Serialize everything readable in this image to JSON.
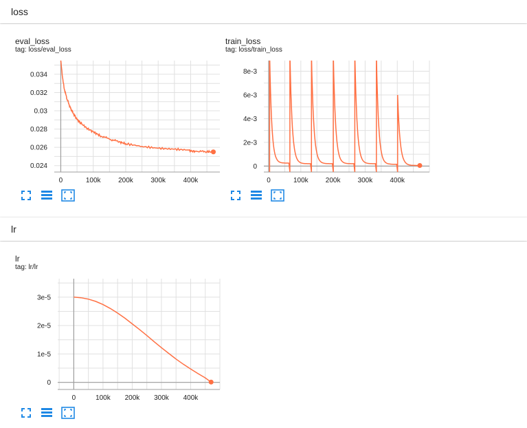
{
  "sections": [
    {
      "title": "loss"
    },
    {
      "title": "lr"
    }
  ],
  "colors": {
    "series": "#ff7043",
    "grid": "#e0e0e0",
    "axis": "#9e9e9e",
    "icon": "#1e88e5"
  },
  "icons": [
    "fit-domain-icon",
    "data-table-icon",
    "log-scale-toggle-icon"
  ],
  "charts": [
    {
      "title": "eval_loss",
      "tag": "tag: loss/eval_loss",
      "chart_data": {
        "type": "line",
        "title": "eval_loss",
        "xlabel": "",
        "ylabel": "",
        "xlim": [
          -20000,
          490000
        ],
        "ylim": [
          0.0233,
          0.0355
        ],
        "xticks": [
          {
            "v": 0,
            "l": "0"
          },
          {
            "v": 100000,
            "l": "100k"
          },
          {
            "v": 200000,
            "l": "200k"
          },
          {
            "v": 300000,
            "l": "300k"
          },
          {
            "v": 400000,
            "l": "400k"
          }
        ],
        "yticks": [
          {
            "v": 0.024,
            "l": "0.024"
          },
          {
            "v": 0.026,
            "l": "0.026"
          },
          {
            "v": 0.028,
            "l": "0.028"
          },
          {
            "v": 0.03,
            "l": "0.03"
          },
          {
            "v": 0.032,
            "l": "0.032"
          },
          {
            "v": 0.034,
            "l": "0.034"
          }
        ],
        "grid": true,
        "series": [
          {
            "x": [
              0,
              5000,
              10000,
              20000,
              30000,
              40000,
              50000,
              60000,
              80000,
              100000,
              120000,
              150000,
              180000,
              200000,
              250000,
              300000,
              350000,
              395000,
              400000,
              420000,
              450000,
              470000
            ],
            "y": [
              0.0355,
              0.0338,
              0.0325,
              0.0312,
              0.0303,
              0.0296,
              0.0291,
              0.0287,
              0.0281,
              0.0277,
              0.0273,
              0.0269,
              0.0266,
              0.0264,
              0.0261,
              0.0259,
              0.0258,
              0.0257,
              0.0256,
              0.02555,
              0.02553,
              0.0255
            ]
          }
        ]
      }
    },
    {
      "title": "train_loss",
      "tag": "tag: loss/train_loss",
      "chart_data": {
        "type": "line",
        "title": "train_loss",
        "xlabel": "",
        "ylabel": "",
        "xlim": [
          -15000,
          500000
        ],
        "ylim": [
          -0.0005,
          0.0089
        ],
        "xticks": [
          {
            "v": 0,
            "l": "0"
          },
          {
            "v": 100000,
            "l": "100k"
          },
          {
            "v": 200000,
            "l": "200k"
          },
          {
            "v": 300000,
            "l": "300k"
          },
          {
            "v": 400000,
            "l": "400k"
          }
        ],
        "yticks": [
          {
            "v": 0,
            "l": "0"
          },
          {
            "v": 0.002,
            "l": "2e-3"
          },
          {
            "v": 0.004,
            "l": "4e-3"
          },
          {
            "v": 0.006,
            "l": "6e-3"
          },
          {
            "v": 0.008,
            "l": "8e-3"
          }
        ],
        "grid": true,
        "spikes": [
          {
            "start": 3000,
            "end": 63000,
            "peak": 0.0095,
            "floor": 0.00025
          },
          {
            "start": 66000,
            "end": 130000,
            "peak": 0.0095,
            "floor": 0.0002
          },
          {
            "start": 133000,
            "end": 198000,
            "peak": 0.0095,
            "floor": 0.0002
          },
          {
            "start": 201000,
            "end": 265000,
            "peak": 0.0095,
            "floor": 0.0002
          },
          {
            "start": 268000,
            "end": 332000,
            "peak": 0.0095,
            "floor": 0.0002
          },
          {
            "start": 335000,
            "end": 398000,
            "peak": 0.0095,
            "floor": 0.00015
          },
          {
            "start": 401000,
            "end": 470000,
            "peak": 0.006,
            "floor": 5e-05
          }
        ],
        "last_point": {
          "x": 470000,
          "y": 5e-05
        }
      }
    },
    {
      "title": "lr",
      "tag": "tag: lr/lr",
      "chart_data": {
        "type": "line",
        "title": "lr",
        "xlabel": "",
        "ylabel": "",
        "xlim": [
          -55000,
          500000
        ],
        "ylim": [
          -2.5e-06,
          3.65e-05
        ],
        "xticks": [
          {
            "v": 0,
            "l": "0"
          },
          {
            "v": 100000,
            "l": "100k"
          },
          {
            "v": 200000,
            "l": "200k"
          },
          {
            "v": 300000,
            "l": "300k"
          },
          {
            "v": 400000,
            "l": "400k"
          }
        ],
        "yticks": [
          {
            "v": 0,
            "l": "0"
          },
          {
            "v": 1e-05,
            "l": "1e-5"
          },
          {
            "v": 2e-05,
            "l": "2e-5"
          },
          {
            "v": 3e-05,
            "l": "3e-5"
          }
        ],
        "grid": true,
        "series": [
          {
            "x": [
              0,
              25000,
              50000,
              75000,
              100000,
              125000,
              150000,
              175000,
              200000,
              225000,
              250000,
              275000,
              300000,
              325000,
              350000,
              375000,
              400000,
              425000,
              450000,
              470000
            ],
            "y": [
              3e-05,
              2.98e-05,
              2.93e-05,
              2.85e-05,
              2.74e-05,
              2.6e-05,
              2.44e-05,
              2.26e-05,
              2.06e-05,
              1.86e-05,
              1.65e-05,
              1.43e-05,
              1.22e-05,
              1.02e-05,
              8.2e-06,
              6.4e-06,
              4.7e-06,
              3.1e-06,
              1.6e-06,
              1e-07
            ]
          }
        ]
      }
    }
  ]
}
